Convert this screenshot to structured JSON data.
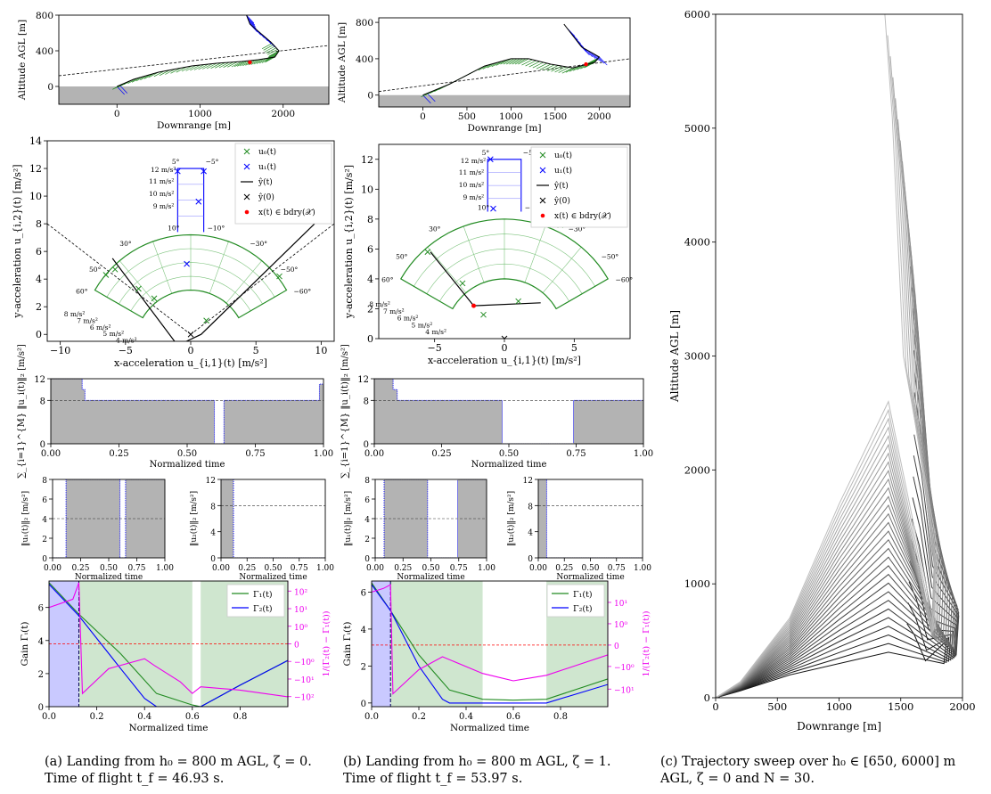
{
  "captions": {
    "a": {
      "line1": "(a) Landing from h₀ = 800 m AGL, ζ = 0.",
      "line2": "Time of flight t_f = 46.93 s."
    },
    "b": {
      "line1": "(b) Landing from h₀ = 800 m AGL, ζ = 1.",
      "line2": "Time of flight t_f = 53.97 s."
    },
    "c": {
      "line1": "(c) Trajectory sweep over h₀ ∈ [650, 6000] m",
      "line2": "AGL, ζ = 0 and N = 30."
    }
  },
  "colors": {
    "green": "#228b22",
    "blue": "#0000ff",
    "magenta": "#ee00ee",
    "red": "#ff0000",
    "gray": "#b3b3b3",
    "light_green": "#cfe6cf",
    "light_blue": "#c9c9ff"
  },
  "chart_data": [
    {
      "id": "a_traj",
      "type": "line",
      "xlabel": "Downrange [m]",
      "ylabel": "Altitude AGL [m]",
      "xlim": [
        -700,
        2550
      ],
      "ylim": [
        -200,
        800
      ],
      "xticks": [
        "0",
        "1000",
        "2000"
      ],
      "yticks": [
        "0",
        "400",
        "800"
      ],
      "series": [
        {
          "name": "trajectory",
          "x": [
            0,
            200,
            500,
            900,
            1200,
            1500,
            1700,
            1900,
            1950,
            1850,
            1600,
            1550
          ],
          "y": [
            0,
            80,
            160,
            230,
            260,
            280,
            300,
            330,
            400,
            500,
            700,
            820
          ]
        },
        {
          "name": "glideslope",
          "x": [
            -700,
            2550
          ],
          "y": [
            120,
            460
          ]
        }
      ]
    },
    {
      "id": "b_traj",
      "type": "line",
      "xlabel": "Downrange [m]",
      "ylabel": "Altitude AGL [m]",
      "xlim": [
        -500,
        2350
      ],
      "ylim": [
        -130,
        850
      ],
      "xticks": [
        "0",
        "500",
        "1000",
        "1500",
        "2000"
      ],
      "yticks": [
        "0",
        "400",
        "800"
      ],
      "series": [
        {
          "name": "trajectory",
          "x": [
            0,
            300,
            700,
            1000,
            1200,
            1450,
            1700,
            1950,
            2000,
            1800,
            1600
          ],
          "y": [
            0,
            120,
            320,
            400,
            400,
            340,
            300,
            360,
            420,
            530,
            780
          ]
        },
        {
          "name": "glideslope",
          "x": [
            -500,
            2350
          ],
          "y": [
            40,
            400
          ]
        }
      ]
    },
    {
      "id": "a_accel",
      "type": "scatter",
      "xlabel": "x-acceleration u_{i,1}(t) [m/s²]",
      "ylabel": "y-acceleration u_{i,2}(t) [m/s²]",
      "xlim": [
        -11,
        11
      ],
      "ylim": [
        -0.5,
        14
      ],
      "xticks": [
        "−10",
        "−5",
        "0",
        "5",
        "10"
      ],
      "yticks": [
        "0",
        "2",
        "4",
        "6",
        "8",
        "10",
        "12",
        "14"
      ],
      "legend": [
        "u₀(t)",
        "u₁(t)",
        "ŷ(t)",
        "ŷ(0)",
        "x(t) ∈ bdry(𝒳)"
      ],
      "annotations": [
        "12 m/s²",
        "11 m/s²",
        "10 m/s²",
        "9 m/s²",
        "8 m/s²",
        "7 m/s²",
        "6 m/s²",
        "5 m/s²",
        "4 m/s²",
        "5°",
        "−5°",
        "10°",
        "−10°",
        "30°",
        "−30°",
        "50°",
        "−50°",
        "60°",
        "−60°"
      ],
      "u0": {
        "x": [
          -6.5,
          -5.8,
          -4.0,
          -2.8,
          1.2,
          6.8
        ],
        "y": [
          4.3,
          4.7,
          3.3,
          2.6,
          1.0,
          4.2
        ]
      },
      "u1": {
        "x": [
          -1.0,
          1.0,
          0.6,
          -0.3
        ],
        "y": [
          11.8,
          11.8,
          9.6,
          5.1
        ]
      },
      "yhat": {
        "x": [
          -1.0,
          -6.0,
          -1.0,
          0.8,
          9.5
        ],
        "y": [
          -0.8,
          5.5,
          -0.8,
          0.0,
          8.0
        ]
      },
      "yhat0": {
        "x": [
          0.0
        ],
        "y": [
          0.0
        ]
      },
      "bdry": {
        "x": [
          -1.0
        ],
        "y": [
          -0.8
        ]
      }
    },
    {
      "id": "b_accel",
      "type": "scatter",
      "xlabel": "x-acceleration u_{i,1}(t) [m/s²]",
      "ylabel": "y-acceleration u_{i,2}(t) [m/s²]",
      "xlim": [
        -9,
        9
      ],
      "ylim": [
        0,
        13
      ],
      "xticks": [
        "−5",
        "0",
        "5"
      ],
      "yticks": [
        "0",
        "2",
        "4",
        "6",
        "8",
        "10",
        "12"
      ],
      "legend": [
        "u₀(t)",
        "u₁(t)",
        "ŷ(t)",
        "ŷ(0)",
        "x(t) ∈ bdry(𝒳)"
      ],
      "annotations": [
        "12 m/s²",
        "11 m/s²",
        "10 m/s²",
        "9 m/s²",
        "8 m/s²",
        "7 m/s²",
        "6 m/s²",
        "5 m/s²",
        "4 m/s²",
        "5°",
        "−5°",
        "10°",
        "−10°",
        "30°",
        "−30°",
        "50°",
        "−50°",
        "60°",
        "−60°"
      ],
      "u0": {
        "x": [
          -5.5,
          -3.0,
          -1.5,
          1.0,
          4.0
        ],
        "y": [
          5.8,
          3.7,
          1.6,
          2.5,
          7.6
        ]
      },
      "u1": {
        "x": [
          -1.0,
          -0.8
        ],
        "y": [
          12.0,
          8.7
        ]
      },
      "yhat": {
        "x": [
          -5.3,
          -2.2,
          2.6
        ],
        "y": [
          5.8,
          2.2,
          2.4
        ]
      },
      "yhat0": {
        "x": [
          0.0
        ],
        "y": [
          0.0
        ]
      },
      "bdry": {
        "x": [
          -2.2
        ],
        "y": [
          2.2
        ]
      }
    },
    {
      "id": "a_sum",
      "type": "area",
      "xlabel": "Normalized time",
      "ylabel": "∑_{i=1}^{M} ‖u_i(t)‖₂ [m/s²]",
      "xlim": [
        0,
        1
      ],
      "ylim": [
        0,
        12
      ],
      "xticks": [
        "0.00",
        "0.25",
        "0.50",
        "0.75",
        "1.00"
      ],
      "yticks": [
        "0",
        "8",
        "12"
      ],
      "x": [
        0,
        0.115,
        0.115,
        0.125,
        0.125,
        0.6,
        0.6,
        0.635,
        0.635,
        0.985,
        0.985,
        1.0
      ],
      "y": [
        12,
        12,
        10,
        10,
        8,
        8,
        0,
        0,
        8,
        8,
        11,
        11
      ],
      "threshold": 8
    },
    {
      "id": "b_sum",
      "type": "area",
      "xlabel": "Normalized time",
      "ylabel": "∑_{i=1}^{M} ‖u_i(t)‖₂ [m/s²]",
      "xlim": [
        0,
        1
      ],
      "ylim": [
        0,
        12
      ],
      "xticks": [
        "0.00",
        "0.25",
        "0.50",
        "0.75",
        "1.00"
      ],
      "yticks": [
        "0",
        "8",
        "12"
      ],
      "x": [
        0,
        0.07,
        0.07,
        0.085,
        0.085,
        0.475,
        0.475,
        0.74,
        0.74,
        1.0
      ],
      "y": [
        12,
        12,
        10,
        10,
        8,
        8,
        0,
        0,
        8,
        8
      ],
      "threshold": 8
    },
    {
      "id": "a_u1",
      "type": "area",
      "xlabel": "Normalized time",
      "ylabel": "‖u₁(t)‖₂ [m/s²]",
      "xlim": [
        0,
        1
      ],
      "ylim": [
        0,
        8
      ],
      "xticks": [
        "0.00",
        "0.25",
        "0.50",
        "0.75",
        "1.00"
      ],
      "yticks": [
        "0",
        "2",
        "4",
        "6",
        "8"
      ],
      "x": [
        0,
        0.12,
        0.12,
        0.6,
        0.6,
        0.65,
        0.65,
        1.0
      ],
      "y": [
        0,
        0,
        8,
        8,
        0,
        0,
        8,
        8
      ],
      "threshold": 4
    },
    {
      "id": "a_u2",
      "type": "area",
      "xlabel": "Normalized time",
      "ylabel": "‖u₂(t)‖₂ [m/s²]",
      "xlim": [
        0,
        1
      ],
      "ylim": [
        0,
        12
      ],
      "xticks": [
        "0.00",
        "0.25",
        "0.50",
        "0.75",
        "1.00"
      ],
      "yticks": [
        "0",
        "4",
        "8",
        "12"
      ],
      "x": [
        0,
        0.12,
        0.12,
        1.0
      ],
      "y": [
        12,
        12,
        0,
        0
      ],
      "threshold": 8
    },
    {
      "id": "b_u1",
      "type": "area",
      "xlabel": "Normalized time",
      "ylabel": "‖u₁(t)‖₂ [m/s²]",
      "xlim": [
        0,
        1
      ],
      "ylim": [
        0,
        8
      ],
      "xticks": [
        "0.00",
        "0.25",
        "0.50",
        "0.75",
        "1.00"
      ],
      "yticks": [
        "0",
        "2",
        "4",
        "6",
        "8"
      ],
      "x": [
        0,
        0.08,
        0.08,
        0.47,
        0.47,
        0.74,
        0.74,
        1.0
      ],
      "y": [
        0,
        0,
        8,
        8,
        0,
        0,
        8,
        8
      ],
      "threshold": 4
    },
    {
      "id": "b_u2",
      "type": "area",
      "xlabel": "Normalized time",
      "ylabel": "‖u₂(t)‖₂ [m/s²]",
      "xlim": [
        0,
        1
      ],
      "ylim": [
        0,
        12
      ],
      "xticks": [
        "0.00",
        "0.25",
        "0.50",
        "0.75",
        "1.00"
      ],
      "yticks": [
        "0",
        "4",
        "8",
        "12"
      ],
      "x": [
        0,
        0.08,
        0.08,
        1.0
      ],
      "y": [
        12,
        12,
        0,
        0
      ],
      "threshold": 8
    },
    {
      "id": "a_gain",
      "type": "line",
      "xlabel": "Normalized time",
      "ylabel": "Gain Γᵢ(t)",
      "ylabel_right": "1/(Γ₂(t) − Γ₁(t))",
      "xlim": [
        0,
        1
      ],
      "ylim": [
        0,
        7.6
      ],
      "xticks": [
        "0.0",
        "0.2",
        "0.4",
        "0.6",
        "0.8"
      ],
      "yticks": [
        "0",
        "2",
        "4",
        "6"
      ],
      "yticks_right": [
        "−10²",
        "−10¹",
        "−10⁰",
        "0",
        "10⁰",
        "10¹",
        "10²"
      ],
      "legend": [
        "Γ₁(t)",
        "Γ₂(t)"
      ],
      "series": [
        {
          "name": "Γ₁(t)",
          "x": [
            0,
            0.125,
            0.3,
            0.45,
            0.6,
            0.635,
            0.8,
            1.0
          ],
          "y": [
            7.5,
            5.6,
            3.2,
            0.8,
            0.1,
            0.0,
            1.3,
            2.8
          ]
        },
        {
          "name": "Γ₂(t)",
          "x": [
            0,
            0.125,
            0.3,
            0.4,
            0.45,
            0.6,
            0.635,
            0.8,
            1.0
          ],
          "y": [
            7.4,
            5.5,
            2.3,
            0.5,
            0.0,
            0.0,
            0.0,
            1.3,
            2.8
          ]
        },
        {
          "name": "1/(Γ₂(t) − Γ₁(t))",
          "x": [
            0,
            0.1,
            0.125,
            0.14,
            0.25,
            0.4,
            0.44,
            0.55,
            0.6,
            0.635,
            0.8,
            1.0
          ],
          "y": [
            6.0,
            6.5,
            7.5,
            0.8,
            2.3,
            2.9,
            2.5,
            1.5,
            0.8,
            1.2,
            1.0,
            0.6
          ]
        }
      ],
      "regions": [
        {
          "x": [
            0,
            0.125
          ],
          "color": "light_blue"
        },
        {
          "x": [
            0.125,
            0.6
          ],
          "color": "light_green"
        },
        {
          "x": [
            0.635,
            1.0
          ],
          "color": "light_green"
        }
      ]
    },
    {
      "id": "b_gain",
      "type": "line",
      "xlabel": "Normalized time",
      "ylabel": "Gain Γᵢ(t)",
      "ylabel_right": "1/(Γ₂(t) − Γ₁(t))",
      "xlim": [
        0,
        1
      ],
      "ylim": [
        -0.2,
        6.6
      ],
      "xticks": [
        "0.0",
        "0.2",
        "0.4",
        "0.6",
        "0.8"
      ],
      "yticks": [
        "0",
        "2",
        "4",
        "6"
      ],
      "yticks_right": [
        "−10¹",
        "−10⁰",
        "0",
        "10⁰",
        "10¹"
      ],
      "legend": [
        "Γ₁(t)",
        "Γ₂(t)"
      ],
      "series": [
        {
          "name": "Γ₁(t)",
          "x": [
            0,
            0.08,
            0.2,
            0.33,
            0.47,
            0.6,
            0.74,
            1.0
          ],
          "y": [
            6.5,
            5.0,
            2.6,
            0.7,
            0.2,
            0.15,
            0.2,
            1.3
          ]
        },
        {
          "name": "Γ₂(t)",
          "x": [
            0,
            0.08,
            0.2,
            0.3,
            0.33,
            0.74,
            1.0
          ],
          "y": [
            6.4,
            5.0,
            2.0,
            0.2,
            0.0,
            0.0,
            1.0
          ]
        },
        {
          "name": "1/(Γ₂(t) − Γ₁(t))",
          "x": [
            0,
            0.05,
            0.08,
            0.09,
            0.2,
            0.3,
            0.47,
            0.6,
            0.74,
            1.0
          ],
          "y": [
            6.0,
            6.2,
            6.4,
            0.5,
            1.8,
            2.5,
            1.6,
            1.2,
            1.5,
            2.6
          ]
        }
      ],
      "regions": [
        {
          "x": [
            0,
            0.08
          ],
          "color": "light_blue"
        },
        {
          "x": [
            0.08,
            0.47
          ],
          "color": "light_green"
        },
        {
          "x": [
            0.74,
            1.0
          ],
          "color": "light_green"
        }
      ]
    },
    {
      "id": "c_sweep",
      "type": "line",
      "xlabel": "Downrange [m]",
      "ylabel": "Altitude AGL [m]",
      "xlim": [
        0,
        2000
      ],
      "ylim": [
        0,
        6000
      ],
      "xticks": [
        "0",
        "500",
        "1000",
        "1500",
        "2000"
      ],
      "yticks": [
        "0",
        "1000",
        "2000",
        "3000",
        "4000",
        "5000",
        "6000"
      ],
      "h0_range": [
        650,
        6000
      ],
      "N": 30
    }
  ]
}
